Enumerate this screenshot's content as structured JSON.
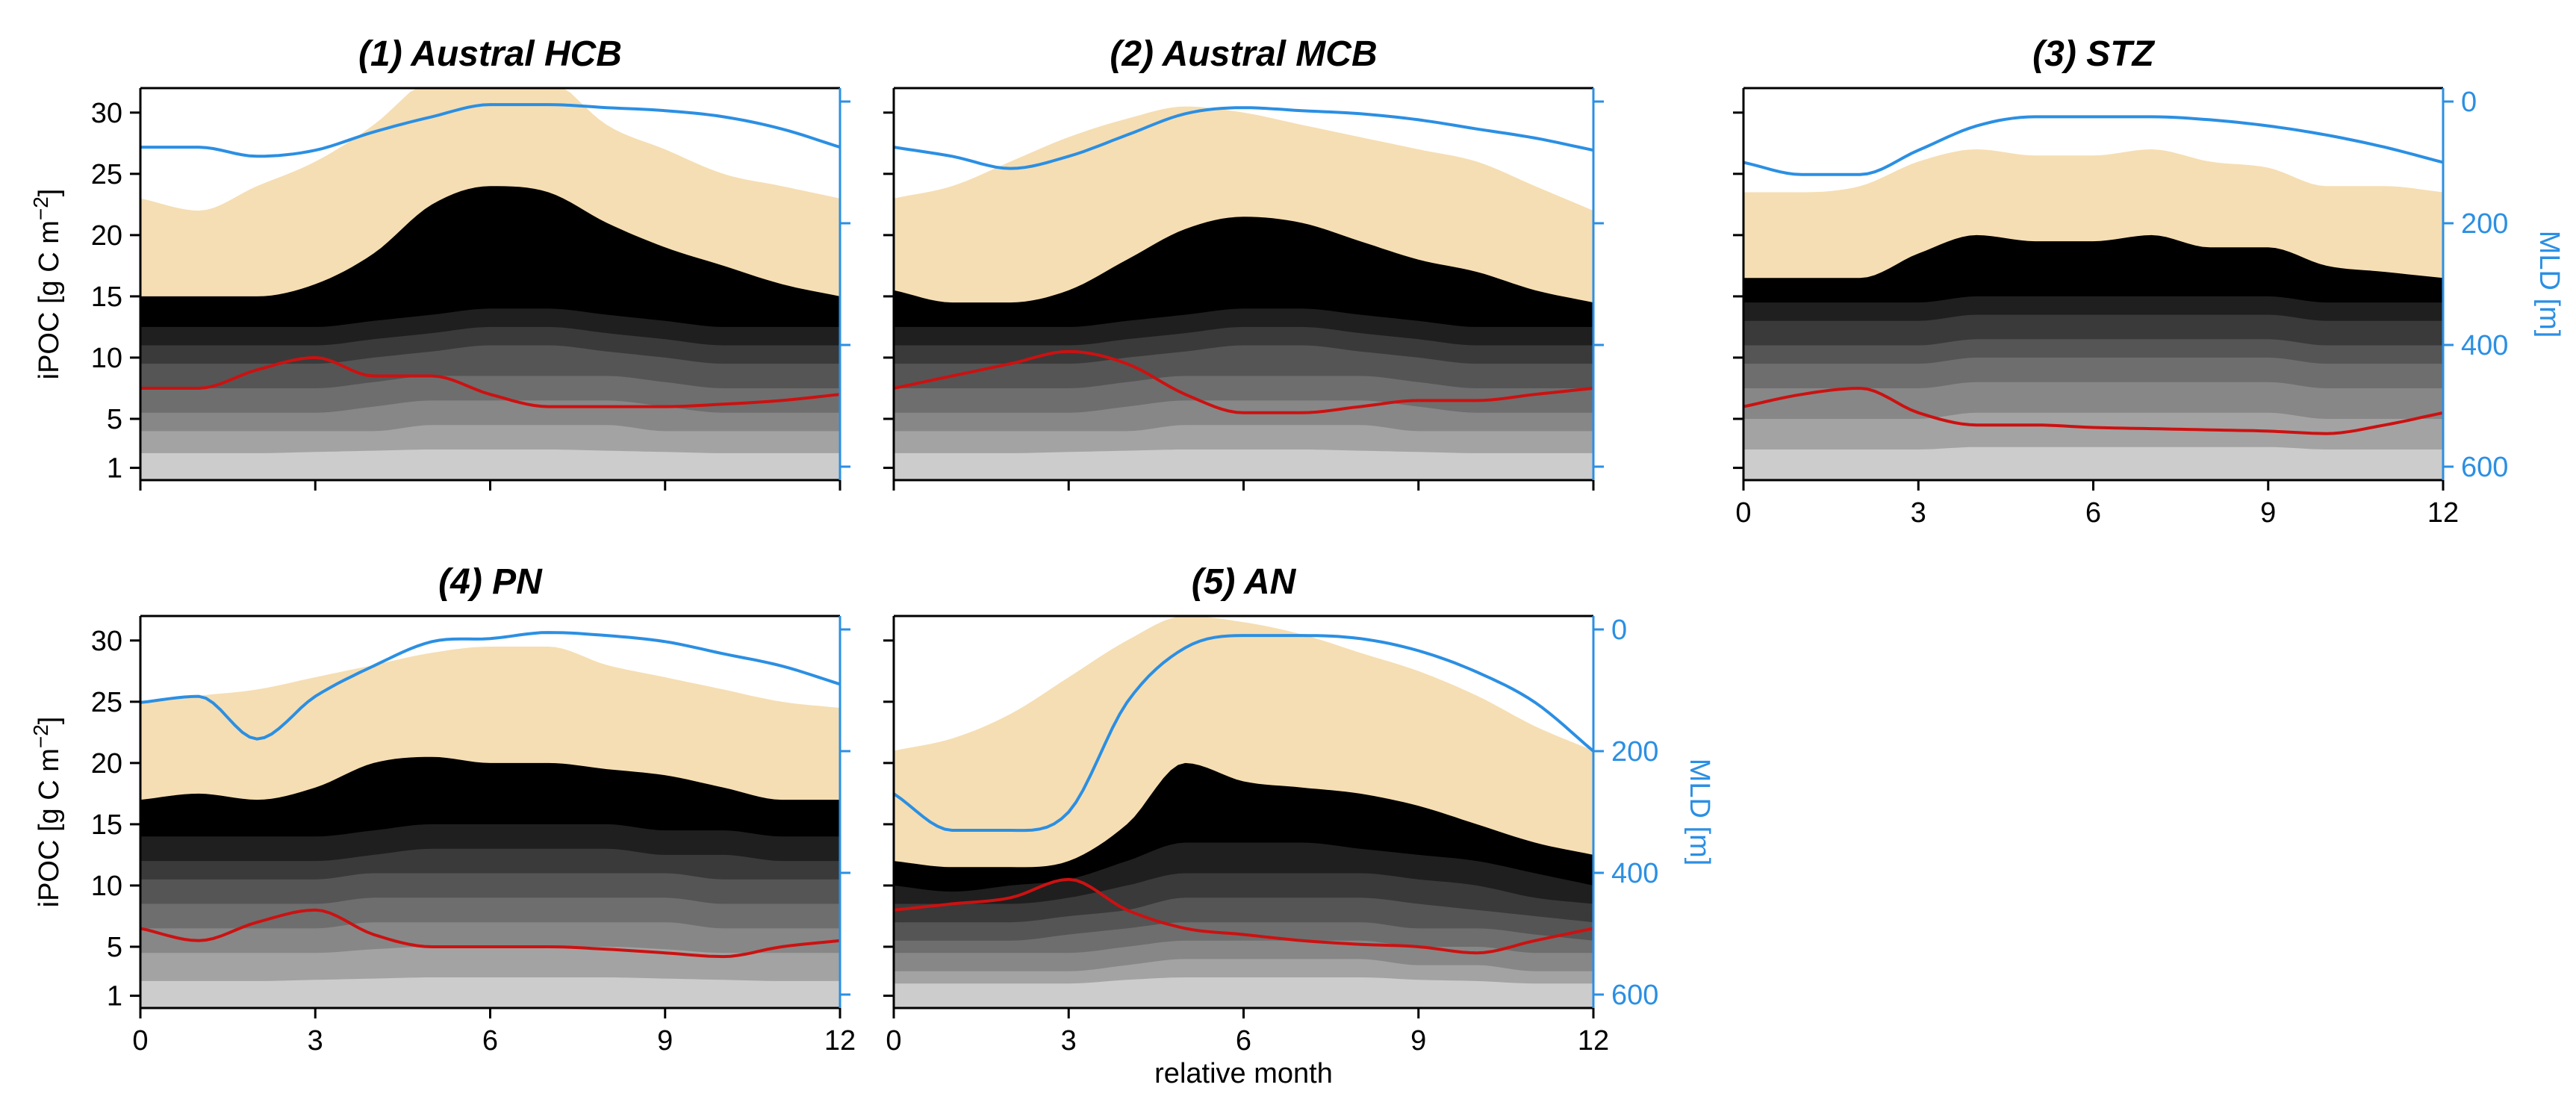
{
  "chart_data": {
    "type": "area",
    "colors": {
      "envelope": "#f5deb3",
      "bands": [
        "#000000",
        "#1f1f1f",
        "#3a3a3a",
        "#555555",
        "#6e6e6e",
        "#878787",
        "#a3a3a3",
        "#cccccc"
      ],
      "median_line": "#cc1111",
      "mld_line": "#2b8fe3"
    },
    "shared": {
      "xlabel": "relative month",
      "ylabel_main": "iPOC  [g C m",
      "ylabel_exp": "−2",
      "ylabel_close": "]",
      "ylabel_mld": "MLD [m]",
      "xlim": [
        0,
        12
      ],
      "x_ticks": [
        "0",
        "3",
        "6",
        "9",
        "12"
      ],
      "ylim": [
        0,
        32
      ],
      "y_ticks": [
        "1",
        "5",
        "10",
        "15",
        "20",
        "25",
        "30"
      ],
      "mld_lim": [
        600,
        0
      ],
      "mld_ticks": [
        "0",
        "200",
        "400",
        "600"
      ]
    },
    "panels": [
      {
        "title": "(1) Austral HCB",
        "months": [
          0,
          1,
          2,
          3,
          4,
          5,
          6,
          7,
          8,
          9,
          10,
          11,
          12
        ],
        "envelope_top": [
          23,
          22,
          24,
          26,
          29,
          33,
          34,
          33,
          29,
          27,
          25,
          24,
          23
        ],
        "band_tops": [
          [
            15,
            15,
            15,
            16,
            18.5,
            22.5,
            24,
            23.5,
            21,
            19,
            17.5,
            16,
            15
          ],
          [
            12.5,
            12.5,
            12.5,
            12.5,
            13,
            13.5,
            14,
            14,
            13.5,
            13,
            12.5,
            12.5,
            12.5
          ],
          [
            11,
            11,
            11,
            11,
            11.5,
            12,
            12.5,
            12.5,
            12,
            11.5,
            11,
            11,
            11
          ],
          [
            9.5,
            9.5,
            9.5,
            9.5,
            10,
            10.5,
            11,
            11,
            10.5,
            10,
            9.5,
            9.5,
            9.5
          ],
          [
            7.5,
            7.5,
            7.5,
            7.5,
            8,
            8.5,
            8.5,
            8.5,
            8.5,
            8,
            7.5,
            7.5,
            7.5
          ],
          [
            5.5,
            5.5,
            5.5,
            5.5,
            6,
            6.5,
            6.5,
            6.5,
            6.5,
            6,
            5.5,
            5.5,
            5.5
          ],
          [
            4,
            4,
            4,
            4,
            4,
            4.5,
            4.5,
            4.5,
            4.5,
            4,
            4,
            4,
            4
          ],
          [
            2.2,
            2.2,
            2.2,
            2.3,
            2.4,
            2.5,
            2.5,
            2.5,
            2.4,
            2.3,
            2.2,
            2.2,
            2.2
          ]
        ],
        "median": [
          7.5,
          7.5,
          9,
          10,
          8.5,
          8.5,
          7,
          6,
          6,
          6,
          6.2,
          6.5,
          7
        ],
        "mld": [
          75,
          75,
          90,
          80,
          50,
          25,
          5,
          5,
          10,
          15,
          25,
          45,
          75
        ],
        "mld_axis_labels": false,
        "x_tick_labels": false
      },
      {
        "title": "(2) Austral MCB",
        "months": [
          0,
          1,
          2,
          3,
          4,
          5,
          6,
          7,
          8,
          9,
          10,
          11,
          12
        ],
        "envelope_top": [
          23,
          24,
          26,
          28,
          29.5,
          30.5,
          30,
          29,
          28,
          27,
          26,
          24,
          22
        ],
        "band_tops": [
          [
            15.5,
            14.5,
            14.5,
            15.5,
            18,
            20.5,
            21.5,
            21,
            19.5,
            18,
            17,
            15.5,
            14.5
          ],
          [
            12.5,
            12.5,
            12.5,
            12.5,
            13,
            13.5,
            14,
            14,
            13.5,
            13,
            12.5,
            12.5,
            12.5
          ],
          [
            11,
            11,
            11,
            11,
            11.5,
            12,
            12.5,
            12.5,
            12,
            11.5,
            11,
            11,
            11
          ],
          [
            9.5,
            9.5,
            9.5,
            9.5,
            10,
            10.5,
            11,
            11,
            10.5,
            10,
            9.5,
            9.5,
            9.5
          ],
          [
            7.5,
            7.5,
            7.5,
            7.5,
            8,
            8.5,
            8.5,
            8.5,
            8.5,
            8,
            7.5,
            7.5,
            7.5
          ],
          [
            5.5,
            5.5,
            5.5,
            5.5,
            6,
            6.5,
            6.5,
            6.5,
            6.5,
            6,
            5.5,
            5.5,
            5.5
          ],
          [
            4,
            4,
            4,
            4,
            4,
            4.5,
            4.5,
            4.5,
            4.5,
            4,
            4,
            4,
            4
          ],
          [
            2.2,
            2.2,
            2.2,
            2.3,
            2.4,
            2.5,
            2.5,
            2.5,
            2.4,
            2.3,
            2.2,
            2.2,
            2.2
          ]
        ],
        "median": [
          7.5,
          8.5,
          9.5,
          10.5,
          9.5,
          7,
          5.5,
          5.5,
          6,
          6.5,
          6.5,
          7,
          7.5
        ],
        "mld": [
          75,
          90,
          110,
          90,
          55,
          20,
          10,
          15,
          20,
          30,
          45,
          60,
          80
        ],
        "mld_axis_labels": false,
        "x_tick_labels": false
      },
      {
        "title": "(3) STZ",
        "months": [
          0,
          1,
          2,
          3,
          4,
          5,
          6,
          7,
          8,
          9,
          10,
          11,
          12
        ],
        "envelope_top": [
          23.5,
          23.5,
          24,
          26,
          27,
          26.5,
          26.5,
          27,
          26,
          25.5,
          24,
          24,
          23.5
        ],
        "band_tops": [
          [
            16.5,
            16.5,
            16.5,
            18.5,
            20,
            19.5,
            19.5,
            20,
            19,
            19,
            17.5,
            17,
            16.5
          ],
          [
            14.5,
            14.5,
            14.5,
            14.5,
            15,
            15,
            15,
            15,
            15,
            15,
            14.5,
            14.5,
            14.5
          ],
          [
            13,
            13,
            13,
            13,
            13.5,
            13.5,
            13.5,
            13.5,
            13.5,
            13.5,
            13,
            13,
            13
          ],
          [
            11,
            11,
            11,
            11,
            11.5,
            11.5,
            11.5,
            11.5,
            11.5,
            11.5,
            11,
            11,
            11
          ],
          [
            9.5,
            9.5,
            9.5,
            9.5,
            10,
            10,
            10,
            10,
            10,
            10,
            9.5,
            9.5,
            9.5
          ],
          [
            7.5,
            7.5,
            7.5,
            7.5,
            8,
            8,
            8,
            8,
            8,
            8,
            7.5,
            7.5,
            7.5
          ],
          [
            5,
            5,
            5,
            5,
            5.5,
            5.5,
            5.5,
            5.5,
            5.5,
            5.5,
            5,
            5,
            5
          ],
          [
            2.5,
            2.5,
            2.5,
            2.5,
            2.7,
            2.7,
            2.7,
            2.7,
            2.7,
            2.7,
            2.5,
            2.5,
            2.5
          ]
        ],
        "median": [
          6,
          7,
          7.5,
          5.5,
          4.5,
          4.5,
          4.3,
          4.2,
          4.1,
          4,
          3.8,
          4.5,
          5.5
        ],
        "mld": [
          100,
          120,
          120,
          80,
          40,
          25,
          25,
          25,
          30,
          40,
          55,
          75,
          100
        ],
        "mld_axis_labels": true,
        "x_tick_labels": true
      },
      {
        "title": "(4) PN",
        "months": [
          0,
          1,
          2,
          3,
          4,
          5,
          6,
          7,
          8,
          9,
          10,
          11,
          12
        ],
        "envelope_top": [
          25,
          25.5,
          26,
          27,
          28,
          29,
          29.5,
          29.5,
          28,
          27,
          26,
          25,
          24.5
        ],
        "band_tops": [
          [
            17,
            17.5,
            17,
            18,
            20,
            20.5,
            20,
            20,
            19.5,
            19,
            18,
            17,
            17
          ],
          [
            14,
            14,
            14,
            14,
            14.5,
            15,
            15,
            15,
            15,
            14.5,
            14.5,
            14,
            14
          ],
          [
            12,
            12,
            12,
            12,
            12.5,
            13,
            13,
            13,
            13,
            12.5,
            12.5,
            12,
            12
          ],
          [
            10.5,
            10.5,
            10.5,
            10.5,
            11,
            11,
            11,
            11,
            11,
            11,
            10.5,
            10.5,
            10.5
          ],
          [
            8.5,
            8.5,
            8.5,
            8.5,
            9,
            9,
            9,
            9,
            9,
            9,
            8.5,
            8.5,
            8.5
          ],
          [
            6.5,
            6.5,
            6.5,
            6.5,
            7,
            7,
            7,
            7,
            7,
            7,
            6.5,
            6.5,
            6.5
          ],
          [
            4.5,
            4.5,
            4.5,
            4.5,
            4.8,
            5,
            5,
            5,
            5,
            4.8,
            4.5,
            4.5,
            4.5
          ],
          [
            2.2,
            2.2,
            2.2,
            2.3,
            2.4,
            2.5,
            2.5,
            2.5,
            2.5,
            2.4,
            2.3,
            2.2,
            2.2
          ]
        ],
        "median": [
          6.5,
          5.5,
          7,
          8,
          6,
          5,
          5,
          5,
          4.8,
          4.5,
          4.2,
          5,
          5.5
        ],
        "mld": [
          120,
          110,
          180,
          110,
          60,
          20,
          15,
          5,
          10,
          20,
          40,
          60,
          90
        ],
        "mld_axis_labels": false,
        "x_tick_labels": true
      },
      {
        "title": "(5) AN",
        "months": [
          0,
          1,
          2,
          3,
          4,
          5,
          6,
          7,
          8,
          9,
          10,
          11,
          12
        ],
        "envelope_top": [
          21,
          22,
          24,
          27,
          30,
          32,
          31.5,
          30.5,
          29,
          27.5,
          25.5,
          23,
          21
        ],
        "band_tops": [
          [
            12,
            11.5,
            11.5,
            12,
            15,
            20,
            18.5,
            18,
            17.5,
            16.5,
            15,
            13.5,
            12.5
          ],
          [
            10,
            9.5,
            10,
            10.5,
            12,
            13.5,
            13.5,
            13.5,
            13,
            12.5,
            12,
            11,
            10
          ],
          [
            8.5,
            8.5,
            8.5,
            9,
            10,
            11,
            11,
            11,
            11,
            10.5,
            10,
            9,
            8.5
          ],
          [
            7,
            7,
            7,
            7.5,
            8,
            9,
            9,
            9,
            9,
            8.5,
            8,
            7.5,
            7
          ],
          [
            5.5,
            5.5,
            5.5,
            6,
            6.5,
            7,
            7,
            7,
            7,
            6.5,
            6.5,
            6,
            5.5
          ],
          [
            4.5,
            4.5,
            4.5,
            4.5,
            5,
            5.5,
            5.5,
            5.5,
            5.5,
            5,
            5,
            4.5,
            4.5
          ],
          [
            3,
            3,
            3,
            3,
            3.5,
            4,
            4,
            4,
            4,
            3.5,
            3.5,
            3,
            3
          ],
          [
            2,
            2,
            2,
            2,
            2.3,
            2.5,
            2.5,
            2.5,
            2.5,
            2.3,
            2.2,
            2,
            2
          ]
        ],
        "median": [
          8,
          8.5,
          9,
          10.5,
          8,
          6.5,
          6,
          5.5,
          5.2,
          5,
          4.5,
          5.5,
          6.5
        ],
        "mld": [
          270,
          330,
          330,
          300,
          120,
          30,
          10,
          10,
          15,
          35,
          70,
          120,
          200
        ],
        "mld_axis_labels": true,
        "x_tick_labels": true
      }
    ]
  }
}
